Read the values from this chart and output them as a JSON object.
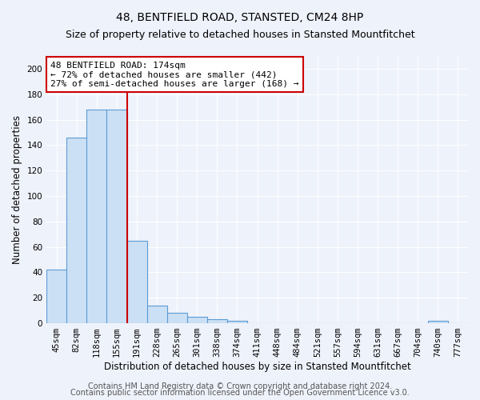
{
  "title": "48, BENTFIELD ROAD, STANSTED, CM24 8HP",
  "subtitle": "Size of property relative to detached houses in Stansted Mountfitchet",
  "xlabel": "Distribution of detached houses by size in Stansted Mountfitchet",
  "ylabel": "Number of detached properties",
  "footer1": "Contains HM Land Registry data © Crown copyright and database right 2024.",
  "footer2": "Contains public sector information licensed under the Open Government Licence v3.0.",
  "bin_labels": [
    "45sqm",
    "82sqm",
    "118sqm",
    "155sqm",
    "191sqm",
    "228sqm",
    "265sqm",
    "301sqm",
    "338sqm",
    "374sqm",
    "411sqm",
    "448sqm",
    "484sqm",
    "521sqm",
    "557sqm",
    "594sqm",
    "631sqm",
    "667sqm",
    "704sqm",
    "740sqm",
    "777sqm"
  ],
  "bar_values": [
    42,
    146,
    168,
    168,
    65,
    14,
    8,
    5,
    3,
    2,
    0,
    0,
    0,
    0,
    0,
    0,
    0,
    0,
    0,
    2,
    0
  ],
  "bar_color": "#cce0f5",
  "bar_edge_color": "#5b9bd5",
  "red_line_color": "#cc0000",
  "annotation_line1": "48 BENTFIELD ROAD: 174sqm",
  "annotation_line2": "← 72% of detached houses are smaller (442)",
  "annotation_line3": "27% of semi-detached houses are larger (168) →",
  "annotation_box_color": "#ffffff",
  "annotation_box_edge": "#cc0000",
  "ylim": [
    0,
    210
  ],
  "yticks": [
    0,
    20,
    40,
    60,
    80,
    100,
    120,
    140,
    160,
    180,
    200
  ],
  "background_color": "#eef2fb",
  "plot_bg_color": "#eef2fb",
  "grid_color": "#ffffff",
  "title_fontsize": 10,
  "subtitle_fontsize": 9,
  "axis_label_fontsize": 8.5,
  "tick_fontsize": 7.5,
  "annotation_fontsize": 8,
  "footer_fontsize": 7
}
